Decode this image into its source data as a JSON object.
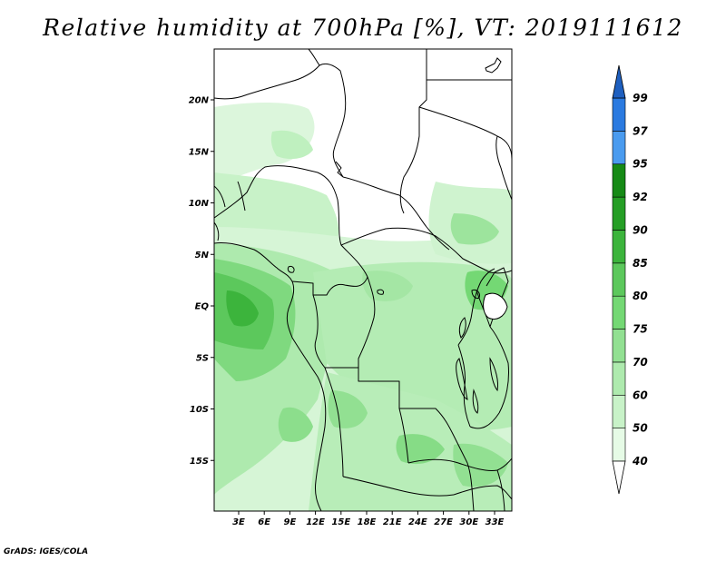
{
  "title": "Relative humidity at 700hPa [%], VT: 2019111612",
  "credit": "GrADS: IGES/COLA",
  "map": {
    "lat_ticks": [
      {
        "value": 20,
        "label": "20N"
      },
      {
        "value": 15,
        "label": "15N"
      },
      {
        "value": 10,
        "label": "10N"
      },
      {
        "value": 5,
        "label": "5N"
      },
      {
        "value": 0,
        "label": "EQ"
      },
      {
        "value": -5,
        "label": "5S"
      },
      {
        "value": -10,
        "label": "10S"
      },
      {
        "value": -15,
        "label": "15S"
      }
    ],
    "lon_ticks": [
      {
        "value": 3,
        "label": "3E"
      },
      {
        "value": 6,
        "label": "6E"
      },
      {
        "value": 9,
        "label": "9E"
      },
      {
        "value": 12,
        "label": "12E"
      },
      {
        "value": 15,
        "label": "15E"
      },
      {
        "value": 18,
        "label": "18E"
      },
      {
        "value": 21,
        "label": "21E"
      },
      {
        "value": 24,
        "label": "24E"
      },
      {
        "value": 27,
        "label": "27E"
      },
      {
        "value": 30,
        "label": "30E"
      },
      {
        "value": 33,
        "label": "33E"
      }
    ]
  },
  "colorbar": {
    "levels": [
      {
        "label": "40",
        "color": "#ffffff"
      },
      {
        "label": "50",
        "color": "#e6fbe6"
      },
      {
        "label": "60",
        "color": "#c8f2c8"
      },
      {
        "label": "70",
        "color": "#aeeaae"
      },
      {
        "label": "75",
        "color": "#92e092"
      },
      {
        "label": "80",
        "color": "#74d874"
      },
      {
        "label": "85",
        "color": "#5cc85c"
      },
      {
        "label": "90",
        "color": "#3cb43c"
      },
      {
        "label": "92",
        "color": "#259e25"
      },
      {
        "label": "95",
        "color": "#168a16"
      },
      {
        "label": "97",
        "color": "#4a9bef"
      },
      {
        "label": "99",
        "color": "#2a7ae0"
      }
    ],
    "top_color": "#1e5fbf",
    "bottom_color": "#ffffff"
  }
}
